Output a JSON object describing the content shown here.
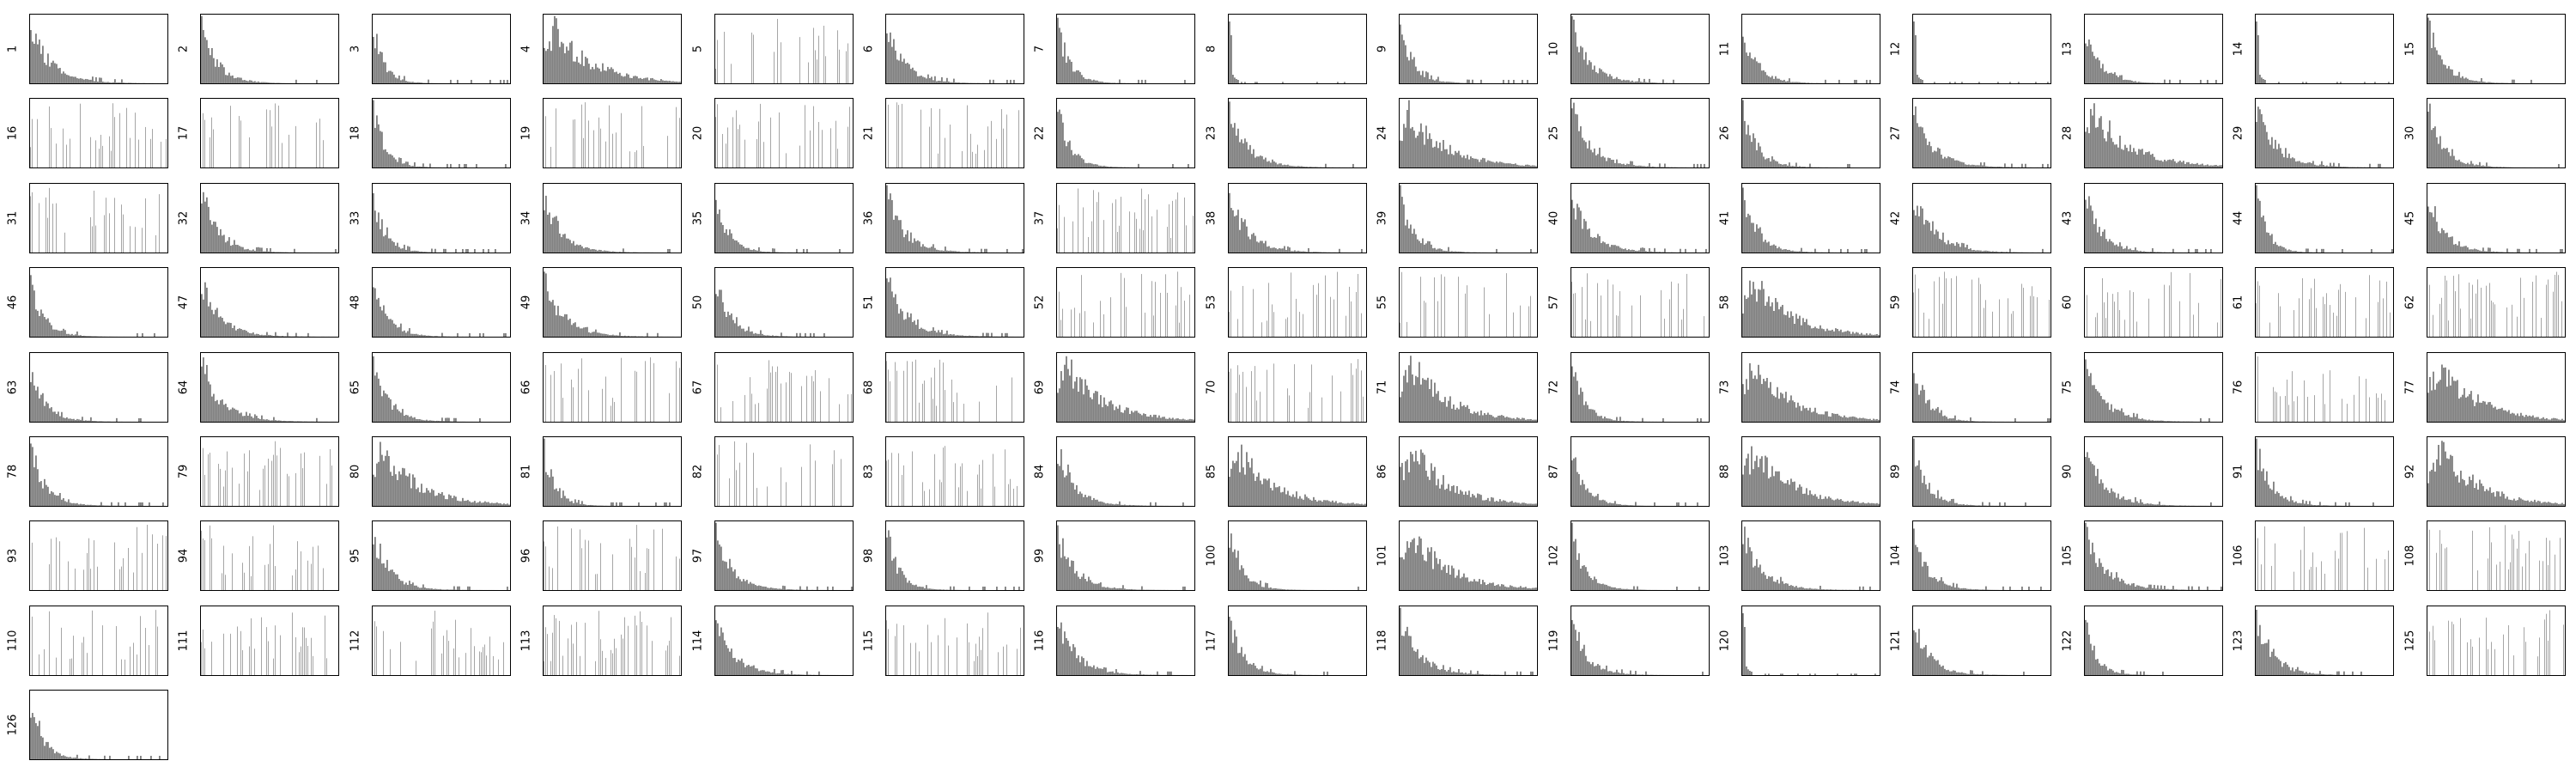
{
  "chart_data": {
    "type": "bar",
    "layout": "small-multiples grid, 15 panels per row",
    "title": "",
    "xlabel": "",
    "ylabel": "",
    "ticks_visible": false,
    "bar_color": "#808080",
    "frame_color": "#000000",
    "panel_labels": [
      "1",
      "2",
      "3",
      "4",
      "5",
      "6",
      "7",
      "8",
      "9",
      "10",
      "11",
      "12",
      "13",
      "14",
      "15",
      "16",
      "17",
      "18",
      "19",
      "20",
      "21",
      "22",
      "23",
      "24",
      "25",
      "26",
      "27",
      "28",
      "29",
      "30",
      "31",
      "32",
      "33",
      "34",
      "35",
      "36",
      "37",
      "38",
      "39",
      "40",
      "41",
      "42",
      "43",
      "44",
      "45",
      "46",
      "47",
      "48",
      "49",
      "50",
      "51",
      "52",
      "53",
      "55",
      "57",
      "58",
      "59",
      "60",
      "61",
      "62",
      "63",
      "64",
      "65",
      "66",
      "67",
      "68",
      "69",
      "70",
      "71",
      "72",
      "73",
      "74",
      "75",
      "76",
      "77",
      "78",
      "79",
      "80",
      "81",
      "82",
      "83",
      "84",
      "85",
      "86",
      "87",
      "88",
      "89",
      "90",
      "91",
      "92",
      "93",
      "94",
      "95",
      "96",
      "97",
      "98",
      "99",
      "100",
      "101",
      "102",
      "103",
      "104",
      "105",
      "106",
      "108",
      "110",
      "111",
      "112",
      "113",
      "114",
      "115",
      "116",
      "117",
      "118",
      "119",
      "120",
      "121",
      "122",
      "123",
      "125",
      "126"
    ],
    "panel_shapes": {
      "4": "broad",
      "24": "broad",
      "28": "broad",
      "58": "broad",
      "69": "broad",
      "71": "broad",
      "73": "broad",
      "77": "broad",
      "80": "broad",
      "85": "broad",
      "86": "broad",
      "88": "broad",
      "92": "broad",
      "101": "broad",
      "5": "sparse",
      "16": "sparse",
      "17": "sparse",
      "19": "sparse",
      "20": "sparse",
      "21": "sparse",
      "31": "sparse",
      "37": "sparse",
      "52": "sparse",
      "53": "sparse",
      "55": "sparse",
      "57": "sparse",
      "59": "sparse",
      "60": "sparse",
      "61": "sparse",
      "62": "sparse",
      "66": "sparse",
      "67": "sparse",
      "68": "sparse",
      "70": "sparse",
      "76": "sparse",
      "79": "sparse",
      "82": "sparse",
      "83": "sparse",
      "93": "sparse",
      "94": "sparse",
      "96": "sparse",
      "106": "sparse",
      "108": "sparse",
      "110": "sparse",
      "111": "sparse",
      "112": "sparse",
      "113": "sparse",
      "115": "sparse",
      "125": "sparse",
      "8": "spike",
      "12": "spike",
      "14": "spike",
      "120": "spike"
    }
  }
}
